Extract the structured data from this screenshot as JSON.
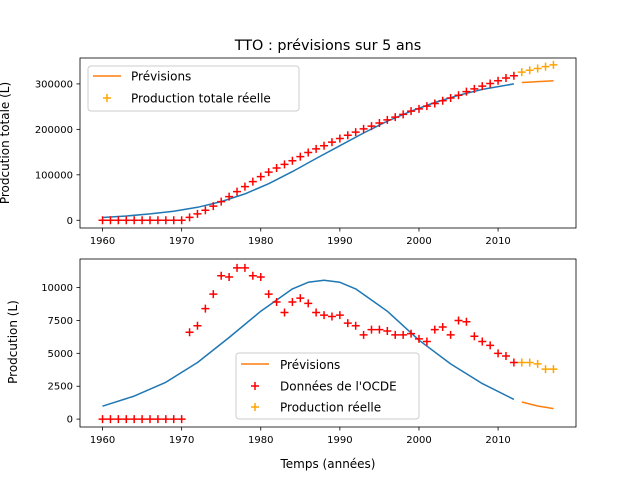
{
  "chart_data": [
    {
      "type": "line",
      "title": "TTO : prévisions sur 5 ans",
      "xlabel": "",
      "ylabel": "Prodcution totale (L)",
      "xlim": [
        1957.15,
        2019.85
      ],
      "ylim": [
        -17000,
        357000
      ],
      "grid": false,
      "legend_position": "top-left",
      "x_ticks": [
        1960,
        1970,
        1980,
        1990,
        2000,
        2010
      ],
      "y_ticks": [
        0,
        100000,
        200000,
        300000
      ],
      "y_tick_labels": [
        "0",
        "100000",
        "200000",
        "300000"
      ],
      "series": [
        {
          "name": "",
          "kind": "line",
          "color": "#1f77b4",
          "x": [
            1960,
            1963,
            1966,
            1969,
            1972,
            1975,
            1978,
            1981,
            1984,
            1987,
            1990,
            1993,
            1996,
            1999,
            2002,
            2005,
            2008,
            2012
          ],
          "y": [
            6000,
            9500,
            14000,
            20000,
            28500,
            41000,
            58000,
            80500,
            107000,
            136000,
            164000,
            192000,
            218000,
            240000,
            259000,
            275000,
            288000,
            300000
          ]
        },
        {
          "name": "Prévisions",
          "kind": "line",
          "color": "#ff7f0e",
          "x": [
            2013,
            2014,
            2015,
            2016,
            2017
          ],
          "y": [
            303000,
            304000,
            305000,
            306000,
            307000
          ]
        },
        {
          "name": "",
          "kind": "marker",
          "color": "#ff0000",
          "x": [
            1960,
            1961,
            1962,
            1963,
            1964,
            1965,
            1966,
            1967,
            1968,
            1969,
            1970,
            1971,
            1972,
            1973,
            1974,
            1975,
            1976,
            1977,
            1978,
            1979,
            1980,
            1981,
            1982,
            1983,
            1984,
            1985,
            1986,
            1987,
            1988,
            1989,
            1990,
            1991,
            1992,
            1993,
            1994,
            1995,
            1996,
            1997,
            1998,
            1999,
            2000,
            2001,
            2002,
            2003,
            2004,
            2005,
            2006,
            2007,
            2008,
            2009,
            2010,
            2011,
            2012
          ],
          "y": [
            0,
            0,
            0,
            0,
            0,
            0,
            0,
            0,
            0,
            0,
            0,
            6500,
            14000,
            22000,
            31000,
            41000,
            52000,
            63000,
            74000,
            85000,
            96000,
            106000,
            115000,
            123000,
            131000,
            140000,
            149000,
            157000,
            164000,
            172000,
            180000,
            187000,
            194000,
            201000,
            207000,
            214000,
            221000,
            227000,
            233000,
            240000,
            245000,
            251000,
            257000,
            263000,
            269000,
            275000,
            283000,
            289000,
            295000,
            301000,
            307000,
            313000,
            318000
          ]
        },
        {
          "name": "Production totale réelle",
          "kind": "marker",
          "color": "#ffa500",
          "x": [
            2013,
            2014,
            2015,
            2016,
            2017
          ],
          "y": [
            326000,
            330000,
            334000,
            338000,
            342000
          ]
        }
      ]
    },
    {
      "type": "line",
      "title": "",
      "xlabel": "Temps (années)",
      "ylabel": "Prodcution (L)",
      "xlim": [
        1957.15,
        2019.85
      ],
      "ylim": [
        -600,
        12170
      ],
      "grid": false,
      "legend_position": "lower-center",
      "x_ticks": [
        1960,
        1970,
        1980,
        1990,
        2000,
        2010
      ],
      "y_ticks": [
        0,
        2500,
        5000,
        7500,
        10000
      ],
      "y_tick_labels": [
        "0",
        "2500",
        "5000",
        "7500",
        "10000"
      ],
      "series": [
        {
          "name": "",
          "kind": "line",
          "color": "#1f77b4",
          "x": [
            1960,
            1964,
            1968,
            1972,
            1976,
            1980,
            1984,
            1986,
            1988,
            1990,
            1992,
            1996,
            2000,
            2004,
            2008,
            2012
          ],
          "y": [
            980,
            1750,
            2800,
            4300,
            6200,
            8200,
            9900,
            10400,
            10550,
            10400,
            9900,
            8200,
            6000,
            4200,
            2700,
            1500
          ]
        },
        {
          "name": "Prévisions",
          "kind": "line",
          "color": "#ff7f0e",
          "x": [
            2013,
            2014,
            2015,
            2016,
            2017
          ],
          "y": [
            1300,
            1150,
            1000,
            900,
            800
          ]
        },
        {
          "name": "Données de l'OCDE",
          "kind": "marker",
          "color": "#ff0000",
          "x": [
            1960,
            1961,
            1962,
            1963,
            1964,
            1965,
            1966,
            1967,
            1968,
            1969,
            1970,
            1971,
            1972,
            1973,
            1974,
            1975,
            1976,
            1977,
            1978,
            1979,
            1980,
            1981,
            1982,
            1983,
            1984,
            1985,
            1986,
            1987,
            1988,
            1989,
            1990,
            1991,
            1992,
            1993,
            1994,
            1995,
            1996,
            1997,
            1998,
            1999,
            2000,
            2001,
            2002,
            2003,
            2004,
            2005,
            2006,
            2007,
            2008,
            2009,
            2010,
            2011,
            2012
          ],
          "y": [
            0,
            0,
            0,
            0,
            0,
            0,
            0,
            0,
            0,
            0,
            0,
            6600,
            7100,
            8400,
            9500,
            10900,
            10800,
            11500,
            11500,
            10900,
            10800,
            9500,
            8900,
            8100,
            8900,
            9200,
            8800,
            8100,
            7900,
            7800,
            7900,
            7300,
            7100,
            6400,
            6800,
            6800,
            6700,
            6400,
            6400,
            6500,
            6100,
            5900,
            6800,
            7000,
            6400,
            7500,
            7400,
            6300,
            5900,
            5600,
            5000,
            4800,
            4300
          ]
        },
        {
          "name": "Production réelle",
          "kind": "marker",
          "color": "#ffa500",
          "x": [
            2013,
            2014,
            2015,
            2016,
            2017
          ],
          "y": [
            4300,
            4300,
            4200,
            3800,
            3800
          ]
        }
      ]
    }
  ]
}
